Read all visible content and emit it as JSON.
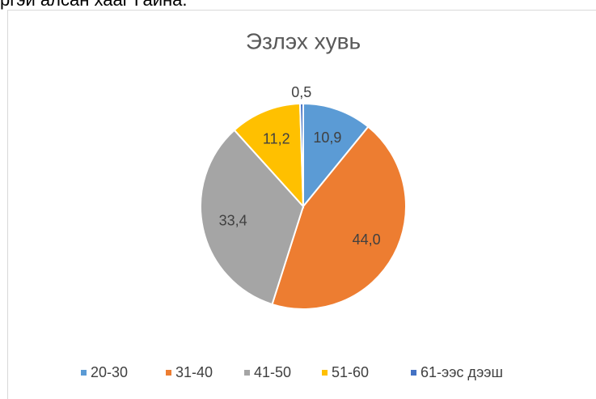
{
  "page_text": "ргэй алсан хааг Гайна.",
  "chart_data": {
    "type": "pie",
    "title": "Эзлэх хувь",
    "categories": [
      "20-30",
      "31-40",
      "41-50",
      "51-60",
      "61-ээс дээш"
    ],
    "values": [
      10.9,
      44.0,
      33.4,
      11.2,
      0.5
    ],
    "value_labels": [
      "10,9",
      "44,0",
      "33,4",
      "11,2",
      "0,5"
    ],
    "colors": [
      "#5b9bd5",
      "#ed7d31",
      "#a5a5a5",
      "#ffc000",
      "#4472c4"
    ],
    "legend": "bottom"
  }
}
